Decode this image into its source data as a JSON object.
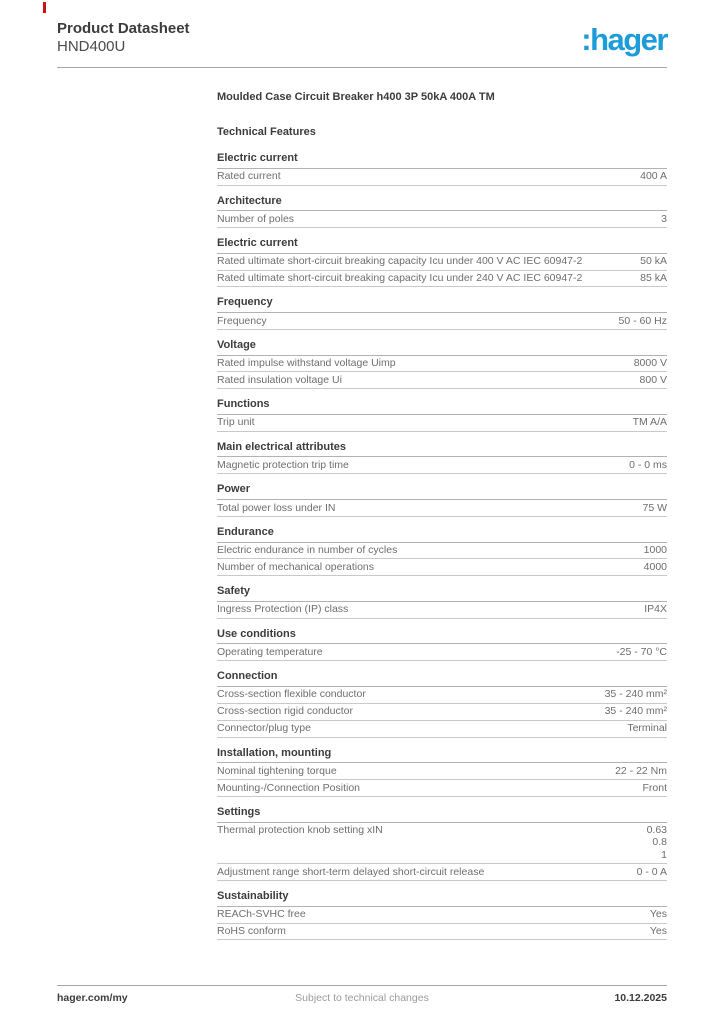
{
  "colors": {
    "brand_blue": "#1c9cd8",
    "heading_text": "#3f3f3f",
    "body_text": "#6e6e6e",
    "corner_mark_red": "#c41319"
  },
  "header": {
    "title": "Product Datasheet",
    "product_code": "HND400U",
    "logo_text": ":hager"
  },
  "document": {
    "product_title": "Moulded Case Circuit Breaker h400 3P 50kA 400A TM",
    "features_heading": "Technical Features",
    "sections": [
      {
        "title": "Electric current",
        "rows": [
          {
            "label": "Rated current",
            "value": "400 A"
          }
        ]
      },
      {
        "title": "Architecture",
        "rows": [
          {
            "label": "Number of poles",
            "value": "3"
          }
        ]
      },
      {
        "title": "Electric current",
        "rows": [
          {
            "label": "Rated ultimate short-circuit breaking capacity Icu under 400 V AC IEC 60947-2",
            "value": "50 kA"
          },
          {
            "label": "Rated ultimate short-circuit breaking capacity Icu under 240 V AC IEC 60947-2",
            "value": "85 kA"
          }
        ]
      },
      {
        "title": "Frequency",
        "rows": [
          {
            "label": "Frequency",
            "value": "50 - 60 Hz"
          }
        ]
      },
      {
        "title": "Voltage",
        "rows": [
          {
            "label": "Rated impulse withstand voltage Uimp",
            "value": "8000 V"
          },
          {
            "label": "Rated insulation voltage Ui",
            "value": "800 V"
          }
        ]
      },
      {
        "title": "Functions",
        "rows": [
          {
            "label": "Trip unit",
            "value": "TM A/A"
          }
        ]
      },
      {
        "title": "Main electrical attributes",
        "rows": [
          {
            "label": "Magnetic protection trip time",
            "value": "0 - 0 ms"
          }
        ]
      },
      {
        "title": "Power",
        "rows": [
          {
            "label": "Total power loss under IN",
            "value": "75 W"
          }
        ]
      },
      {
        "title": "Endurance",
        "rows": [
          {
            "label": "Electric endurance in number of cycles",
            "value": "1000"
          },
          {
            "label": "Number of mechanical operations",
            "value": "4000"
          }
        ]
      },
      {
        "title": "Safety",
        "rows": [
          {
            "label": "Ingress Protection (IP) class",
            "value": "IP4X"
          }
        ]
      },
      {
        "title": "Use conditions",
        "rows": [
          {
            "label": "Operating temperature",
            "value": "-25 - 70 °C"
          }
        ]
      },
      {
        "title": "Connection",
        "rows": [
          {
            "label": "Cross-section flexible conductor",
            "value": "35 - 240 mm²"
          },
          {
            "label": "Cross-section rigid conductor",
            "value": "35 - 240 mm²"
          },
          {
            "label": "Connector/plug type",
            "value": "Terminal"
          }
        ]
      },
      {
        "title": "Installation, mounting",
        "rows": [
          {
            "label": "Nominal tightening torque",
            "value": "22 - 22 Nm"
          },
          {
            "label": "Mounting-/Connection Position",
            "value": "Front"
          }
        ]
      },
      {
        "title": "Settings",
        "rows": [
          {
            "label": "Thermal protection knob setting xIN",
            "value": "0.63\n0.8\n1"
          },
          {
            "label": "Adjustment range short-term delayed short-circuit release",
            "value": "0 - 0 A"
          }
        ]
      },
      {
        "title": "Sustainability",
        "rows": [
          {
            "label": "REACh-SVHC free",
            "value": "Yes"
          },
          {
            "label": "RoHS conform",
            "value": "Yes"
          }
        ]
      }
    ]
  },
  "footer": {
    "website": "hager.com/my",
    "disclaimer": "Subject to technical changes",
    "date": "10.12.2025"
  }
}
